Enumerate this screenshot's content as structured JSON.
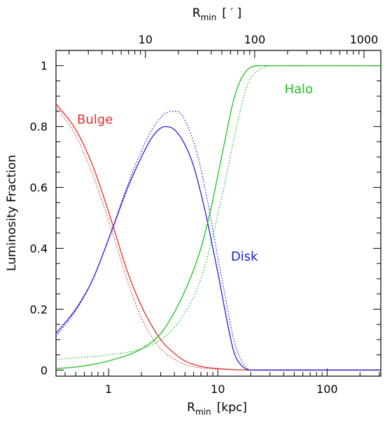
{
  "chart_data": {
    "type": "line",
    "xlabel_main": "R",
    "xlabel_sub": "min",
    "xlabel_unit": "[kpc]",
    "x2label_main": "R",
    "x2label_sub": "min",
    "x2label_unit": "[ ′ ]",
    "ylabel": "Luminosity Fraction",
    "x_scale": "log",
    "xlim": [
      0.33,
      310
    ],
    "ylim": [
      -0.02,
      1.05
    ],
    "x_ticks": [
      1,
      10,
      100
    ],
    "x_tick_labels": [
      "1",
      "10",
      "100"
    ],
    "x2_ticks_arcmin": [
      10,
      100,
      1000
    ],
    "x2_tick_labels": [
      "10",
      "100",
      "1000"
    ],
    "arcmin_per_kpc": 4.6,
    "y_ticks": [
      0,
      0.2,
      0.4,
      0.6,
      0.8,
      1
    ],
    "y_tick_labels": [
      "0",
      "0.2",
      "0.4",
      "0.6",
      "0.8",
      "1"
    ],
    "grid": false,
    "colors": {
      "bulge": "#e03030",
      "disk": "#2020d0",
      "halo": "#20c020"
    },
    "annotations": [
      {
        "text": "Bulge",
        "x": 0.75,
        "y": 0.81,
        "color": "#e03030"
      },
      {
        "text": "Disk",
        "x": 17.5,
        "y": 0.36,
        "color": "#2020d0"
      },
      {
        "text": "Halo",
        "x": 55,
        "y": 0.91,
        "color": "#20c020"
      }
    ],
    "series": [
      {
        "component": "bulge",
        "style": "solid",
        "x": [
          0.33,
          0.5,
          0.7,
          1.0,
          1.5,
          2.0,
          3.0,
          4.0,
          5.0,
          7.0,
          10,
          20,
          100,
          310
        ],
        "y": [
          0.875,
          0.79,
          0.68,
          0.52,
          0.32,
          0.21,
          0.1,
          0.055,
          0.03,
          0.012,
          0.005,
          0.0,
          0.0,
          0.0
        ]
      },
      {
        "component": "bulge",
        "style": "dotted",
        "x": [
          0.33,
          0.5,
          0.7,
          1.0,
          1.5,
          2.0,
          3.0,
          4.0,
          5.0,
          7.0,
          10,
          20,
          100,
          310
        ],
        "y": [
          0.865,
          0.77,
          0.65,
          0.49,
          0.29,
          0.17,
          0.07,
          0.035,
          0.018,
          0.007,
          0.003,
          0.0,
          0.0,
          0.0
        ]
      },
      {
        "component": "disk",
        "style": "solid",
        "x": [
          0.33,
          0.5,
          0.7,
          1.0,
          1.5,
          2.0,
          2.5,
          3.0,
          3.3,
          4.0,
          5.0,
          6.0,
          7.0,
          8.0,
          9.0,
          10,
          12,
          14,
          16,
          20,
          100,
          310
        ],
        "y": [
          0.12,
          0.2,
          0.29,
          0.43,
          0.6,
          0.7,
          0.765,
          0.795,
          0.8,
          0.79,
          0.74,
          0.67,
          0.58,
          0.49,
          0.4,
          0.32,
          0.17,
          0.06,
          0.02,
          0.0,
          0.0,
          0.0
        ]
      },
      {
        "component": "disk",
        "style": "dotted",
        "x": [
          0.33,
          0.5,
          0.7,
          1.0,
          1.5,
          2.0,
          2.5,
          3.0,
          3.5,
          4.0,
          4.5,
          5.0,
          6.0,
          7.0,
          8.0,
          9.0,
          10,
          12,
          14,
          16,
          18,
          20,
          100,
          310
        ],
        "y": [
          0.11,
          0.195,
          0.29,
          0.43,
          0.61,
          0.72,
          0.79,
          0.83,
          0.848,
          0.85,
          0.845,
          0.82,
          0.75,
          0.66,
          0.56,
          0.46,
          0.37,
          0.22,
          0.1,
          0.04,
          0.01,
          0.0,
          0.0,
          0.0
        ]
      },
      {
        "component": "halo",
        "style": "solid",
        "x": [
          0.33,
          0.5,
          1.0,
          2.0,
          3.0,
          4.0,
          5.0,
          6.0,
          7.0,
          8.0,
          9.0,
          10,
          12,
          14,
          16,
          18,
          20,
          25,
          30,
          100,
          310
        ],
        "y": [
          0.005,
          0.01,
          0.03,
          0.07,
          0.12,
          0.19,
          0.26,
          0.33,
          0.4,
          0.48,
          0.56,
          0.64,
          0.78,
          0.89,
          0.95,
          0.98,
          0.995,
          1.0,
          1.0,
          1.0,
          1.0
        ]
      },
      {
        "component": "halo",
        "style": "dotted",
        "x": [
          0.33,
          0.5,
          1.0,
          2.0,
          3.0,
          4.0,
          5.0,
          6.0,
          7.0,
          8.0,
          9.0,
          10,
          12,
          14,
          16,
          18,
          20,
          25,
          30,
          40,
          100,
          310
        ],
        "y": [
          0.035,
          0.04,
          0.05,
          0.07,
          0.1,
          0.14,
          0.19,
          0.24,
          0.3,
          0.37,
          0.44,
          0.51,
          0.64,
          0.76,
          0.85,
          0.92,
          0.96,
          0.99,
          1.0,
          1.0,
          1.0,
          1.0
        ]
      }
    ]
  }
}
